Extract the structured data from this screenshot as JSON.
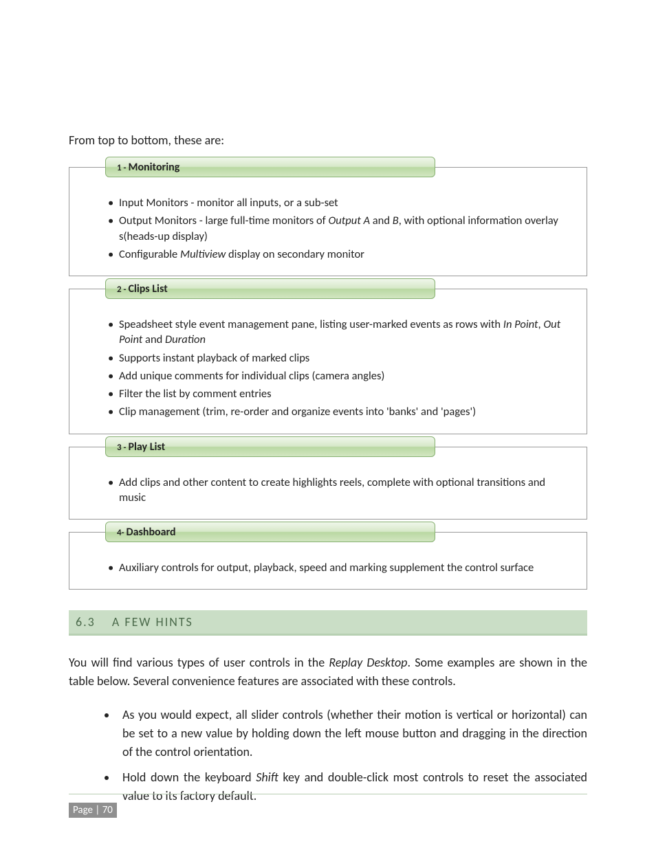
{
  "colors": {
    "title_grad_top": "#f0f7eb",
    "title_grad_midA": "#d6e8c8",
    "title_grad_midB": "#b9d8a2",
    "title_grad_bot": "#d2e6c1",
    "title_border": "#86b070",
    "box_border": "#999999",
    "heading_bg": "#cadec6",
    "heading_underline": "#b7d0b2",
    "heading_text": "#4b6a4b",
    "footer_rule": "#b7cdb2",
    "badge_bg": "#8f8f8f",
    "badge_text": "#ffffff",
    "body_text": "#222222",
    "page_bg": "#ffffff"
  },
  "intro": "From top to bottom, these are:",
  "sections": [
    {
      "num": "1",
      "dash": " - ",
      "name": "Monitoring",
      "items": [
        "Input Monitors - monitor all inputs, or a sub-set",
        "Output Monitors - large full-time monitors of <i>Output A</i> and <i>B</i>, with optional information overlay s(heads-up display)",
        "Configurable <i>Multiview</i> display on secondary monitor"
      ]
    },
    {
      "num": "2",
      "dash": " -  ",
      "name": "Clips List",
      "items": [
        "Speadsheet style  event management pane, listing user-marked events as rows with <i>In Point</i>, <i>Out Point</i> and <i>Duration</i>",
        "Supports instant playback of marked clips",
        "Add unique comments for individual clips (camera angles)",
        "Filter the list by comment entries",
        "Clip management (trim, re-order and organize events into 'banks' and 'pages')"
      ]
    },
    {
      "num": "3",
      "dash": " - ",
      "name": "Play List",
      "items": [
        "Add clips and other content to create highlights reels, complete with optional transitions and music"
      ]
    },
    {
      "num": "4",
      "dash": "- ",
      "name": "Dashboard",
      "items": [
        "Auxiliary controls for output, playback, speed and marking supplement the control surface"
      ]
    }
  ],
  "heading": {
    "num": "6.3",
    "title": "A FEW HINTS"
  },
  "paragraph": "You will find various types of user controls in the <i>Replay Desktop</i>.  Some examples are shown in the table below.  Several convenience features are associated with these controls.",
  "hints": [
    "As you would expect, all slider controls (whether their motion is vertical or horizontal) can be set to a new value by holding down the left mouse button and dragging in the direction of the control orientation.",
    "Hold down the keyboard <i>Shift</i> key and double-click most controls to reset the associated value to its factory default."
  ],
  "footer": {
    "label": "Page | 70"
  }
}
